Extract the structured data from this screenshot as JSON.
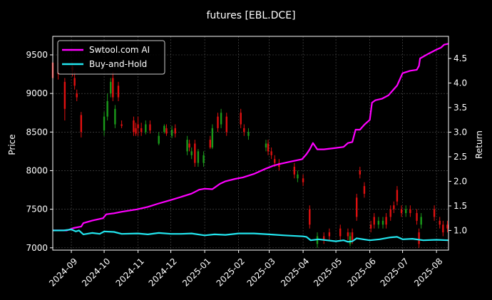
{
  "chart_data": {
    "type": "line",
    "title": "futures [EBL.DCE]",
    "xlabel": "",
    "ylabel_left": "Price",
    "ylabel_right": "Return",
    "x_range": [
      "2024-08-15",
      "2025-08-12"
    ],
    "ylim_left": [
      6970,
      9740
    ],
    "ylim_right": [
      0.6,
      4.95
    ],
    "x_ticks": [
      "2024-09",
      "2024-10",
      "2024-11",
      "2024-12",
      "2025-01",
      "2025-02",
      "2025-03",
      "2025-04",
      "2025-05",
      "2025-06",
      "2025-07",
      "2025-08"
    ],
    "y_ticks_left": [
      "7000",
      "7500",
      "8000",
      "8500",
      "9000",
      "9500"
    ],
    "y_ticks_right": [
      "1.0",
      "1.5",
      "2.0",
      "2.5",
      "3.0",
      "3.5",
      "4.0",
      "4.5"
    ],
    "grid": true,
    "legend_position": "top-left",
    "colors": {
      "ai": "#ff00ff",
      "bh": "#22e5ee",
      "up": "#1a9a1a",
      "down": "#e01010",
      "grid": "#555555",
      "frame": "#ffffff"
    },
    "series": [
      {
        "name": "Swtool.com AI",
        "axis": "right",
        "points": [
          [
            "2024-08-15",
            1.0
          ],
          [
            "2024-08-28",
            1.0
          ],
          [
            "2024-09-03",
            1.05
          ],
          [
            "2024-09-10",
            1.08
          ],
          [
            "2024-09-12",
            1.15
          ],
          [
            "2024-09-20",
            1.2
          ],
          [
            "2024-09-30",
            1.25
          ],
          [
            "2024-10-03",
            1.33
          ],
          [
            "2024-10-10",
            1.35
          ],
          [
            "2024-10-17",
            1.38
          ],
          [
            "2024-10-31",
            1.43
          ],
          [
            "2024-11-10",
            1.48
          ],
          [
            "2024-11-20",
            1.55
          ],
          [
            "2024-12-01",
            1.62
          ],
          [
            "2024-12-10",
            1.68
          ],
          [
            "2024-12-20",
            1.75
          ],
          [
            "2024-12-27",
            1.83
          ],
          [
            "2025-01-01",
            1.85
          ],
          [
            "2025-01-08",
            1.84
          ],
          [
            "2025-01-15",
            1.95
          ],
          [
            "2025-01-20",
            2.0
          ],
          [
            "2025-01-29",
            2.05
          ],
          [
            "2025-02-05",
            2.08
          ],
          [
            "2025-02-15",
            2.15
          ],
          [
            "2025-02-25",
            2.25
          ],
          [
            "2025-03-05",
            2.32
          ],
          [
            "2025-03-10",
            2.35
          ],
          [
            "2025-03-20",
            2.4
          ],
          [
            "2025-03-31",
            2.45
          ],
          [
            "2025-04-04",
            2.55
          ],
          [
            "2025-04-07",
            2.65
          ],
          [
            "2025-04-10",
            2.78
          ],
          [
            "2025-04-14",
            2.65
          ],
          [
            "2025-04-20",
            2.65
          ],
          [
            "2025-05-01",
            2.68
          ],
          [
            "2025-05-08",
            2.7
          ],
          [
            "2025-05-12",
            2.78
          ],
          [
            "2025-05-16",
            2.8
          ],
          [
            "2025-05-19",
            3.05
          ],
          [
            "2025-05-23",
            3.05
          ],
          [
            "2025-05-27",
            3.15
          ],
          [
            "2025-06-01",
            3.25
          ],
          [
            "2025-06-03",
            3.6
          ],
          [
            "2025-06-06",
            3.65
          ],
          [
            "2025-06-12",
            3.68
          ],
          [
            "2025-06-18",
            3.75
          ],
          [
            "2025-06-22",
            3.85
          ],
          [
            "2025-06-26",
            3.95
          ],
          [
            "2025-07-01",
            4.2
          ],
          [
            "2025-07-08",
            4.25
          ],
          [
            "2025-07-14",
            4.27
          ],
          [
            "2025-07-16",
            4.35
          ],
          [
            "2025-07-17",
            4.5
          ],
          [
            "2025-07-25",
            4.6
          ],
          [
            "2025-08-01",
            4.68
          ],
          [
            "2025-08-05",
            4.72
          ],
          [
            "2025-08-08",
            4.78
          ],
          [
            "2025-08-12",
            4.8
          ]
        ]
      },
      {
        "name": "Buy-and-Hold",
        "axis": "right",
        "points": [
          [
            "2024-08-15",
            1.0
          ],
          [
            "2024-08-25",
            1.0
          ],
          [
            "2024-09-01",
            1.02
          ],
          [
            "2024-09-05",
            0.98
          ],
          [
            "2024-09-08",
            1.0
          ],
          [
            "2024-09-12",
            0.92
          ],
          [
            "2024-09-20",
            0.95
          ],
          [
            "2024-09-27",
            0.93
          ],
          [
            "2024-10-01",
            0.98
          ],
          [
            "2024-10-10",
            0.97
          ],
          [
            "2024-10-17",
            0.93
          ],
          [
            "2024-11-01",
            0.94
          ],
          [
            "2024-11-10",
            0.92
          ],
          [
            "2024-11-20",
            0.95
          ],
          [
            "2024-12-01",
            0.93
          ],
          [
            "2024-12-10",
            0.93
          ],
          [
            "2024-12-20",
            0.94
          ],
          [
            "2025-01-01",
            0.9
          ],
          [
            "2025-01-10",
            0.92
          ],
          [
            "2025-01-20",
            0.91
          ],
          [
            "2025-02-01",
            0.94
          ],
          [
            "2025-02-15",
            0.94
          ],
          [
            "2025-03-01",
            0.92
          ],
          [
            "2025-03-15",
            0.9
          ],
          [
            "2025-04-01",
            0.88
          ],
          [
            "2025-04-04",
            0.87
          ],
          [
            "2025-04-08",
            0.8
          ],
          [
            "2025-04-15",
            0.82
          ],
          [
            "2025-05-01",
            0.78
          ],
          [
            "2025-05-08",
            0.8
          ],
          [
            "2025-05-12",
            0.77
          ],
          [
            "2025-05-16",
            0.78
          ],
          [
            "2025-05-20",
            0.84
          ],
          [
            "2025-06-01",
            0.8
          ],
          [
            "2025-06-10",
            0.82
          ],
          [
            "2025-06-20",
            0.86
          ],
          [
            "2025-06-26",
            0.87
          ],
          [
            "2025-07-01",
            0.82
          ],
          [
            "2025-07-10",
            0.83
          ],
          [
            "2025-07-20",
            0.8
          ],
          [
            "2025-08-01",
            0.81
          ],
          [
            "2025-08-12",
            0.8
          ]
        ]
      }
    ],
    "candles": [
      [
        "2024-08-15",
        9400,
        9200,
        9450,
        9150
      ],
      [
        "2024-08-20",
        9300,
        9250,
        9400,
        9180
      ],
      [
        "2024-08-26",
        9150,
        8800,
        9200,
        8650
      ],
      [
        "2024-09-02",
        9350,
        9300,
        9400,
        9220
      ],
      [
        "2024-09-04",
        9200,
        9100,
        9280,
        9050
      ],
      [
        "2024-09-06",
        9000,
        8950,
        9050,
        8900
      ],
      [
        "2024-09-10",
        8720,
        8500,
        8760,
        8430
      ],
      [
        "2024-10-01",
        8520,
        8700,
        8760,
        8450
      ],
      [
        "2024-10-04",
        8700,
        8900,
        9000,
        8650
      ],
      [
        "2024-10-07",
        9000,
        9150,
        9200,
        8950
      ],
      [
        "2024-10-09",
        9200,
        8950,
        9280,
        8900
      ],
      [
        "2024-10-11",
        8600,
        8800,
        8850,
        8550
      ],
      [
        "2024-10-14",
        9100,
        8950,
        9150,
        8900
      ],
      [
        "2024-10-17",
        8600,
        8580,
        8650,
        8550
      ],
      [
        "2024-10-28",
        8650,
        8500,
        8700,
        8450
      ],
      [
        "2024-10-30",
        8550,
        8480,
        8620,
        8450
      ],
      [
        "2024-11-01",
        8600,
        8550,
        8700,
        8450
      ],
      [
        "2024-11-04",
        8550,
        8500,
        8620,
        8450
      ],
      [
        "2024-11-08",
        8500,
        8600,
        8650,
        8470
      ],
      [
        "2024-11-12",
        8600,
        8520,
        8650,
        8480
      ],
      [
        "2024-11-20",
        8350,
        8450,
        8500,
        8330
      ],
      [
        "2024-11-25",
        8500,
        8580,
        8600,
        8480
      ],
      [
        "2024-11-27",
        8550,
        8480,
        8600,
        8450
      ],
      [
        "2024-12-02",
        8450,
        8530,
        8580,
        8420
      ],
      [
        "2024-12-05",
        8550,
        8480,
        8600,
        8430
      ],
      [
        "2024-12-16",
        8250,
        8400,
        8450,
        8200
      ],
      [
        "2024-12-18",
        8350,
        8300,
        8400,
        8250
      ],
      [
        "2024-12-20",
        8200,
        8250,
        8300,
        8150
      ],
      [
        "2024-12-23",
        8350,
        8100,
        8400,
        8050
      ],
      [
        "2024-12-26",
        8100,
        8250,
        8280,
        8050
      ],
      [
        "2024-12-31",
        8100,
        8200,
        8250,
        8050
      ],
      [
        "2025-01-06",
        8400,
        8300,
        8450,
        8280
      ],
      [
        "2025-01-08",
        8300,
        8550,
        8600,
        8280
      ],
      [
        "2025-01-13",
        8700,
        8550,
        8750,
        8500
      ],
      [
        "2025-01-16",
        8600,
        8750,
        8800,
        8550
      ],
      [
        "2025-01-21",
        8700,
        8500,
        8750,
        8450
      ],
      [
        "2025-02-03",
        8750,
        8600,
        8800,
        8550
      ],
      [
        "2025-02-06",
        8550,
        8500,
        8600,
        8450
      ],
      [
        "2025-02-10",
        8450,
        8500,
        8550,
        8400
      ],
      [
        "2025-02-26",
        8300,
        8350,
        8400,
        8250
      ],
      [
        "2025-02-28",
        8350,
        8250,
        8400,
        8200
      ],
      [
        "2025-03-03",
        8250,
        8200,
        8300,
        8150
      ],
      [
        "2025-03-06",
        8150,
        8100,
        8200,
        8050
      ],
      [
        "2025-03-10",
        8100,
        8050,
        8150,
        8000
      ],
      [
        "2025-03-24",
        8050,
        7950,
        8100,
        7900
      ],
      [
        "2025-03-27",
        7900,
        7950,
        8000,
        7850
      ],
      [
        "2025-04-01",
        7900,
        7850,
        7950,
        7800
      ],
      [
        "2025-04-07",
        7500,
        7300,
        7550,
        7250
      ],
      [
        "2025-04-14",
        7050,
        7150,
        7200,
        7000
      ],
      [
        "2025-04-20",
        7150,
        7100,
        7200,
        7050
      ],
      [
        "2025-04-25",
        7200,
        7150,
        7250,
        7100
      ],
      [
        "2025-05-05",
        7250,
        7150,
        7300,
        7100
      ],
      [
        "2025-05-12",
        7200,
        7150,
        7250,
        7100
      ],
      [
        "2025-05-14",
        7050,
        7150,
        7200,
        7020
      ],
      [
        "2025-05-16",
        7200,
        7100,
        7250,
        7050
      ],
      [
        "2025-05-20",
        7650,
        7400,
        7700,
        7350
      ],
      [
        "2025-05-23",
        8000,
        7950,
        8050,
        7900
      ],
      [
        "2025-05-27",
        7800,
        7700,
        7850,
        7650
      ],
      [
        "2025-06-02",
        7300,
        7250,
        7350,
        7200
      ],
      [
        "2025-06-05",
        7400,
        7300,
        7450,
        7250
      ],
      [
        "2025-06-09",
        7300,
        7350,
        7400,
        7250
      ],
      [
        "2025-06-13",
        7300,
        7350,
        7400,
        7250
      ],
      [
        "2025-06-16",
        7400,
        7300,
        7450,
        7250
      ],
      [
        "2025-06-20",
        7500,
        7400,
        7550,
        7350
      ],
      [
        "2025-06-23",
        7550,
        7500,
        7600,
        7450
      ],
      [
        "2025-06-26",
        7750,
        7600,
        7800,
        7550
      ],
      [
        "2025-06-30",
        7500,
        7450,
        7550,
        7400
      ],
      [
        "2025-07-04",
        7450,
        7500,
        7550,
        7400
      ],
      [
        "2025-07-08",
        7500,
        7450,
        7550,
        7400
      ],
      [
        "2025-07-14",
        7450,
        7350,
        7500,
        7300
      ],
      [
        "2025-07-16",
        7200,
        7050,
        7250,
        7000
      ],
      [
        "2025-07-18",
        7300,
        7400,
        7450,
        7250
      ],
      [
        "2025-07-30",
        7500,
        7400,
        7550,
        7350
      ],
      [
        "2025-08-04",
        7350,
        7300,
        7400,
        7250
      ],
      [
        "2025-08-07",
        7300,
        7200,
        7350,
        7150
      ],
      [
        "2025-08-11",
        7300,
        7250,
        7350,
        7200
      ]
    ]
  }
}
